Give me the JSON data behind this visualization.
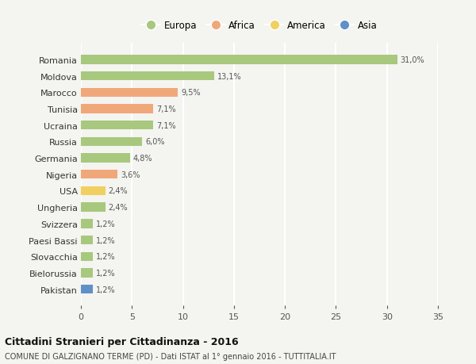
{
  "countries": [
    "Romania",
    "Moldova",
    "Marocco",
    "Tunisia",
    "Ucraina",
    "Russia",
    "Germania",
    "Nigeria",
    "USA",
    "Ungheria",
    "Svizzera",
    "Paesi Bassi",
    "Slovacchia",
    "Bielorussia",
    "Pakistan"
  ],
  "values": [
    31.0,
    13.1,
    9.5,
    7.1,
    7.1,
    6.0,
    4.8,
    3.6,
    2.4,
    2.4,
    1.2,
    1.2,
    1.2,
    1.2,
    1.2
  ],
  "labels": [
    "31,0%",
    "13,1%",
    "9,5%",
    "7,1%",
    "7,1%",
    "6,0%",
    "4,8%",
    "3,6%",
    "2,4%",
    "2,4%",
    "1,2%",
    "1,2%",
    "1,2%",
    "1,2%",
    "1,2%"
  ],
  "continents": [
    "Europa",
    "Europa",
    "Africa",
    "Africa",
    "Europa",
    "Europa",
    "Europa",
    "Africa",
    "America",
    "Europa",
    "Europa",
    "Europa",
    "Europa",
    "Europa",
    "Asia"
  ],
  "colors": {
    "Europa": "#a8c87e",
    "Africa": "#f0a87a",
    "America": "#f0d060",
    "Asia": "#6090c8"
  },
  "title": "Cittadini Stranieri per Cittadinanza - 2016",
  "subtitle": "COMUNE DI GALZIGNANO TERME (PD) - Dati ISTAT al 1° gennaio 2016 - TUTTITALIA.IT",
  "xlim": [
    0,
    35
  ],
  "xticks": [
    0,
    5,
    10,
    15,
    20,
    25,
    30,
    35
  ],
  "background_color": "#f4f4f0",
  "grid_color": "#ffffff",
  "bar_height": 0.55,
  "legend_order": [
    "Europa",
    "Africa",
    "America",
    "Asia"
  ]
}
